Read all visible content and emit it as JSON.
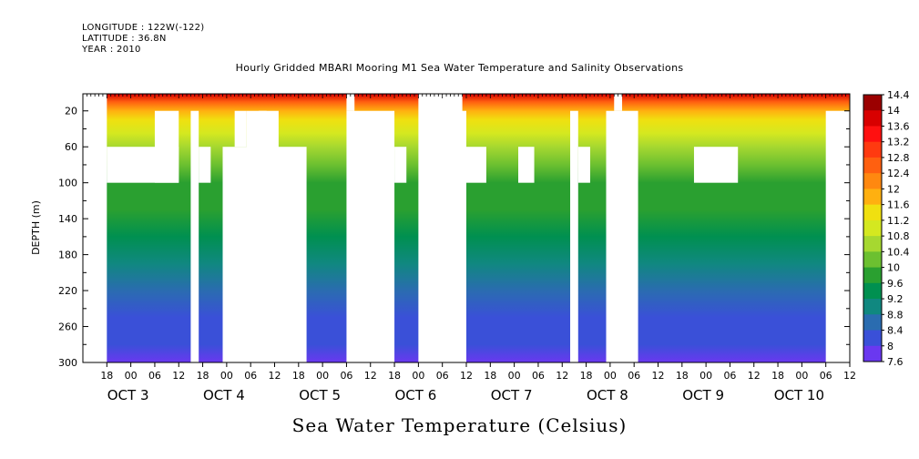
{
  "header": {
    "longitude": "LONGITUDE : 122W(-122)",
    "latitude": "LATITUDE : 36.8N",
    "year": "YEAR : 2010"
  },
  "chart_data": {
    "type": "heatmap",
    "title": "Hourly Gridded MBARI Mooring M1 Sea Water Temperature and Salinity Observations",
    "xlabel": "Sea Water Temperature (Celsius)",
    "ylabel": "DEPTH (m)",
    "ylim": [
      300,
      1
    ],
    "y_ticks": [
      20,
      60,
      100,
      140,
      180,
      220,
      260,
      300
    ],
    "x_start_hour": -12,
    "x_end_hour": 180,
    "x_hour_ticks": [
      {
        "h": -6,
        "label": "18"
      },
      {
        "h": 0,
        "label": "00"
      },
      {
        "h": 6,
        "label": "06"
      },
      {
        "h": 12,
        "label": "12"
      },
      {
        "h": 18,
        "label": "18"
      },
      {
        "h": 24,
        "label": "00"
      },
      {
        "h": 30,
        "label": "06"
      },
      {
        "h": 36,
        "label": "12"
      },
      {
        "h": 42,
        "label": "18"
      },
      {
        "h": 48,
        "label": "00"
      },
      {
        "h": 54,
        "label": "06"
      },
      {
        "h": 60,
        "label": "12"
      },
      {
        "h": 66,
        "label": "18"
      },
      {
        "h": 72,
        "label": "00"
      },
      {
        "h": 78,
        "label": "06"
      },
      {
        "h": 84,
        "label": "12"
      },
      {
        "h": 90,
        "label": "18"
      },
      {
        "h": 96,
        "label": "00"
      },
      {
        "h": 102,
        "label": "06"
      },
      {
        "h": 108,
        "label": "12"
      },
      {
        "h": 114,
        "label": "18"
      },
      {
        "h": 120,
        "label": "00"
      },
      {
        "h": 126,
        "label": "06"
      },
      {
        "h": 132,
        "label": "12"
      },
      {
        "h": 138,
        "label": "18"
      },
      {
        "h": 144,
        "label": "00"
      },
      {
        "h": 150,
        "label": "06"
      },
      {
        "h": 156,
        "label": "12"
      },
      {
        "h": 162,
        "label": "18"
      },
      {
        "h": 168,
        "label": "00"
      },
      {
        "h": 174,
        "label": "06"
      },
      {
        "h": 180,
        "label": "12"
      }
    ],
    "day_labels": [
      {
        "h": 0,
        "label": "OCT  3"
      },
      {
        "h": 24,
        "label": "OCT  4"
      },
      {
        "h": 48,
        "label": "OCT  5"
      },
      {
        "h": 72,
        "label": "OCT  6"
      },
      {
        "h": 96,
        "label": "OCT  7"
      },
      {
        "h": 120,
        "label": "OCT  8"
      },
      {
        "h": 144,
        "label": "OCT  9"
      },
      {
        "h": 168,
        "label": "OCT 10"
      }
    ],
    "colorbar": {
      "labels": [
        "14.4",
        "14",
        "13.6",
        "13.2",
        "12.8",
        "12.4",
        "12",
        "11.6",
        "11.2",
        "10.8",
        "10.4",
        "10",
        "9.6",
        "9.2",
        "8.8",
        "8.4",
        "8",
        "7.6"
      ],
      "colors": [
        "#9b0000",
        "#d80000",
        "#ff1010",
        "#ff3a10",
        "#ff6010",
        "#ff8810",
        "#ffb010",
        "#f0e010",
        "#d4e820",
        "#a6d830",
        "#6cc030",
        "#2aa030",
        "#009050",
        "#108880",
        "#2a6cb0",
        "#3a50d8",
        "#6a38f0",
        "#a020f0"
      ]
    },
    "temperature_profile": {
      "depths_m": [
        1,
        10,
        20,
        30,
        45,
        60,
        80,
        100,
        130,
        160,
        190,
        220,
        250,
        280,
        300
      ],
      "temps_c": [
        13.6,
        12.6,
        11.6,
        11.2,
        10.8,
        10.4,
        10.1,
        9.9,
        9.6,
        9.2,
        8.9,
        8.6,
        8.3,
        8.1,
        7.9
      ]
    },
    "missing_regions": [
      {
        "h0": -12,
        "h1": -6,
        "d0": 1,
        "d1": 300
      },
      {
        "h0": 72,
        "h1": 83,
        "d0": 300,
        "d1": 300
      },
      {
        "h0": -6,
        "h1": 12,
        "d0": 60,
        "d1": 100
      },
      {
        "h0": 6,
        "h1": 12,
        "d0": 20,
        "d1": 100
      },
      {
        "h0": 15,
        "h1": 17,
        "d0": 20,
        "d1": 300
      },
      {
        "h0": 17,
        "h1": 20,
        "d0": 60,
        "d1": 100
      },
      {
        "h0": 23,
        "h1": 44,
        "d0": 60,
        "d1": 300
      },
      {
        "h0": 29,
        "h1": 37,
        "d0": 20,
        "d1": 300
      },
      {
        "h0": 26,
        "h1": 29,
        "d0": 20,
        "d1": 60
      },
      {
        "h0": 32,
        "h1": 34,
        "d0": 20,
        "d1": 60
      },
      {
        "h0": 54,
        "h1": 66,
        "d0": 20,
        "d1": 300
      },
      {
        "h0": 54,
        "h1": 56,
        "d0": 1,
        "d1": 20
      },
      {
        "h0": 66,
        "h1": 69,
        "d0": 60,
        "d1": 100
      },
      {
        "h0": 79,
        "h1": 84,
        "d0": 20,
        "d1": 300
      },
      {
        "h0": 84,
        "h1": 89,
        "d0": 60,
        "d1": 100
      },
      {
        "h0": 97,
        "h1": 101,
        "d0": 60,
        "d1": 100
      },
      {
        "h0": 110,
        "h1": 112,
        "d0": 20,
        "d1": 300
      },
      {
        "h0": 112,
        "h1": 115,
        "d0": 60,
        "d1": 100
      },
      {
        "h0": 119,
        "h1": 127,
        "d0": 20,
        "d1": 300
      },
      {
        "h0": 121,
        "h1": 123,
        "d0": 1,
        "d1": 20
      },
      {
        "h0": 141,
        "h1": 152,
        "d0": 60,
        "d1": 100
      },
      {
        "h0": 174,
        "h1": 180,
        "d0": 20,
        "d1": 300
      }
    ]
  }
}
